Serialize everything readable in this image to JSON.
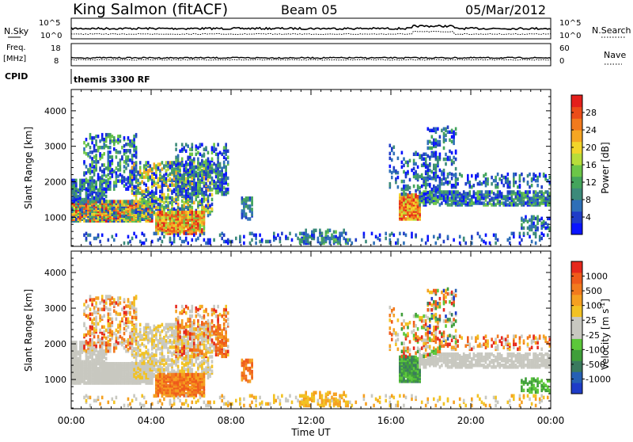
{
  "header": {
    "station": "King Salmon (fitACF)",
    "beam": "Beam 05",
    "date": "05/Mar/2012"
  },
  "status_panels": {
    "nsky_label": "N.Sky",
    "nsky_ticks": [
      "10^5",
      "10^0"
    ],
    "nsearch_label": "N.Search",
    "nsearch_ticks": [
      "10^5",
      "10^0"
    ],
    "freq_label_1": "Freq.",
    "freq_label_2": "[MHz]",
    "freq_ticks": [
      "18",
      "8"
    ],
    "nave_label": "Nave",
    "nave_ticks": [
      "60",
      "0"
    ],
    "cpid_label": "CPID",
    "cpid_text": "themis 3300 RF"
  },
  "chart_data": [
    {
      "type": "heatmap",
      "name": "power",
      "ylabel": "Slant Range [km]",
      "ylim": [
        180,
        4600
      ],
      "yticks": [
        "4000",
        "3000",
        "2000",
        "1000"
      ],
      "colorbar": {
        "label": "Power [dB]",
        "ticks": [
          "28",
          "24",
          "20",
          "16",
          "12",
          "8",
          "4"
        ],
        "colors": [
          "#0a14ff",
          "#1f3cc8",
          "#2e6fb8",
          "#3c8a7a",
          "#44a55c",
          "#6cc648",
          "#b8dd3a",
          "#f2d52a",
          "#f5a623",
          "#f27a1d",
          "#ec4d19",
          "#e4201c"
        ]
      }
    },
    {
      "type": "heatmap",
      "name": "velocity",
      "ylabel": "Slant Range [km]",
      "ylim": [
        180,
        4600
      ],
      "yticks": [
        "4000",
        "3000",
        "2000",
        "1000"
      ],
      "xticks": [
        "00:00",
        "04:00",
        "08:00",
        "12:00",
        "16:00",
        "20:00",
        "00:00"
      ],
      "xlabel": "Time UT",
      "colorbar": {
        "label": "Velocity [m s",
        "label_sup": "-1",
        "label_end": "]",
        "ticks": [
          "1000",
          "500",
          "100",
          "25",
          "-25",
          "-100",
          "-500",
          "-1000"
        ],
        "colors": [
          "#1e3cc8",
          "#2660b4",
          "#3a7a5e",
          "#3f9e3a",
          "#5cc83a",
          "#c8c8c0",
          "#c8c8c0",
          "#f2c223",
          "#f5a020",
          "#f27a1d",
          "#ef5a1a",
          "#e6281c"
        ]
      }
    }
  ]
}
